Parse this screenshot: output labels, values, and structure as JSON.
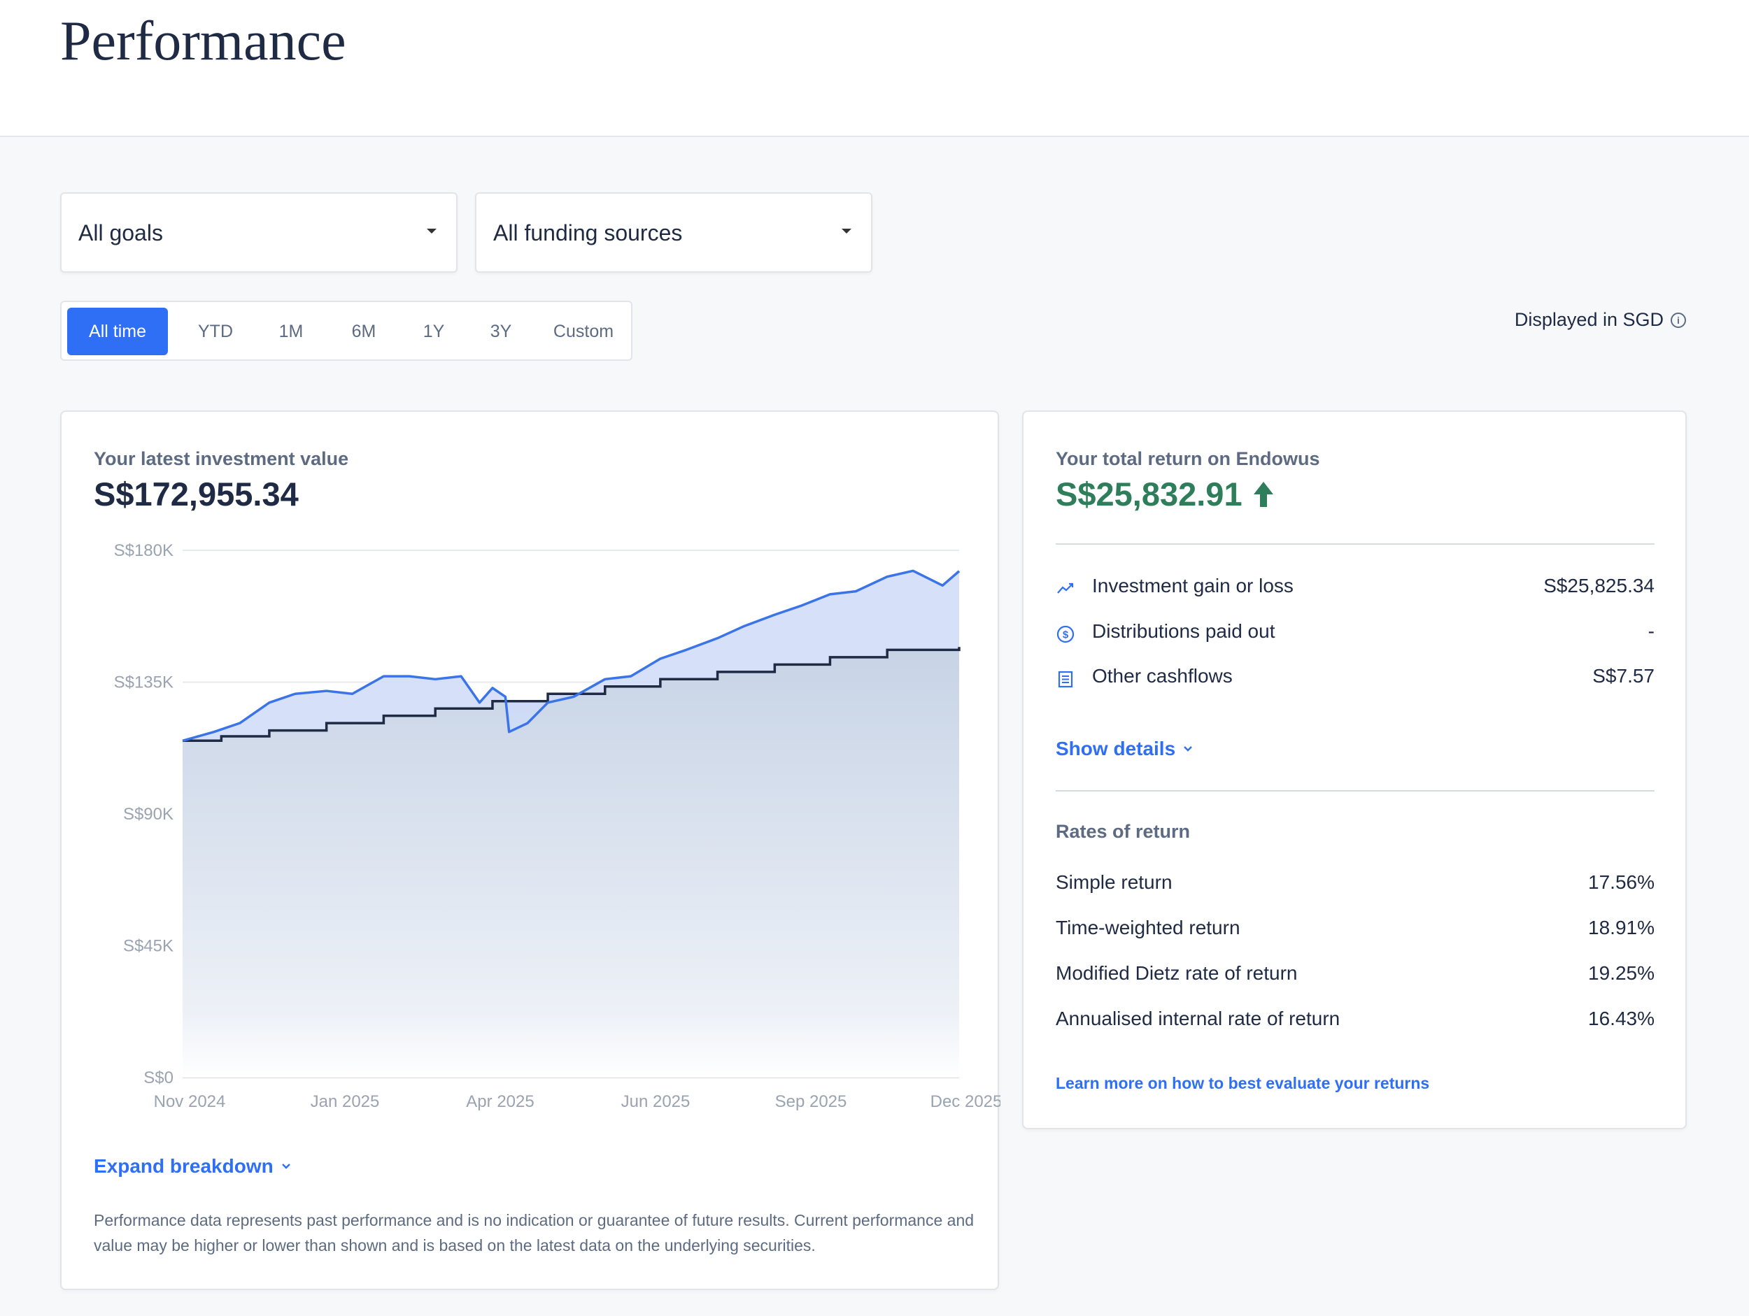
{
  "page": {
    "title": "Performance"
  },
  "filters": {
    "goals": {
      "selected": "All goals"
    },
    "funding": {
      "selected": "All funding sources"
    },
    "ranges": [
      "All time",
      "YTD",
      "1M",
      "6M",
      "1Y",
      "3Y",
      "Custom"
    ],
    "active_range": "All time",
    "currency_note": "Displayed in SGD"
  },
  "investment_card": {
    "subtitle": "Your latest investment value",
    "value": "S$172,955.34",
    "expand_label": "Expand breakdown",
    "disclaimer": "Performance data represents past performance and is no indication or guarantee of future results. Current performance and value may be higher or lower than shown and is based on the latest data on the underlying securities."
  },
  "return_card": {
    "subtitle": "Your total return on Endowus",
    "value": "S$25,832.91",
    "value_color": "#2e7d5b",
    "items": [
      {
        "icon": "trend-line-icon",
        "label": "Investment gain or loss",
        "value": "S$25,825.34"
      },
      {
        "icon": "dollar-coin-icon",
        "label": "Distributions paid out",
        "value": "-"
      },
      {
        "icon": "document-list-icon",
        "label": "Other cashflows",
        "value": "S$7.57"
      }
    ],
    "show_details_label": "Show details",
    "rates_title": "Rates of return",
    "rates": [
      {
        "label": "Simple return",
        "value": "17.56%"
      },
      {
        "label": "Time-weighted return",
        "value": "18.91%"
      },
      {
        "label": "Modified Dietz rate of return",
        "value": "19.25%"
      },
      {
        "label": "Annualised internal rate of return",
        "value": "16.43%"
      }
    ],
    "learn_more_label": "Learn more on how to best evaluate your returns"
  },
  "colors": {
    "accent": "#2f6ff5",
    "net_investment_line": "#1f2a44",
    "value_line": "#3b74e8"
  },
  "chart_data": {
    "type": "line",
    "title": "",
    "xlabel": "",
    "ylabel": "",
    "ylim": [
      0,
      180000
    ],
    "y_ticks": [
      "S$0",
      "S$45K",
      "S$90K",
      "S$135K",
      "S$180K"
    ],
    "x_ticks": [
      "Nov 2024",
      "Jan 2025",
      "Apr 2025",
      "Jun 2025",
      "Sep 2025",
      "Dec 2025"
    ],
    "grid": true,
    "series": [
      {
        "name": "",
        "color": "#3b74e8",
        "x": [
          "2024-10-15",
          "2024-11-01",
          "2024-11-15",
          "2024-12-01",
          "2024-12-15",
          "2025-01-01",
          "2025-01-15",
          "2025-02-01",
          "2025-02-15",
          "2025-03-01",
          "2025-03-15",
          "2025-03-25",
          "2025-04-01",
          "2025-04-08",
          "2025-04-10",
          "2025-04-20",
          "2025-05-01",
          "2025-05-15",
          "2025-06-01",
          "2025-06-15",
          "2025-07-01",
          "2025-07-15",
          "2025-08-01",
          "2025-08-15",
          "2025-09-01",
          "2025-09-15",
          "2025-10-01",
          "2025-10-15",
          "2025-11-01",
          "2025-11-15",
          "2025-12-01",
          "2025-12-10"
        ],
        "values": [
          115000,
          118000,
          121000,
          128000,
          131000,
          132000,
          131000,
          137000,
          137000,
          136000,
          137000,
          128000,
          133000,
          130000,
          118000,
          121000,
          128000,
          130000,
          136000,
          137000,
          143000,
          146000,
          150000,
          154000,
          158000,
          161000,
          165000,
          166000,
          171000,
          173000,
          168000,
          172900
        ]
      },
      {
        "name": "",
        "color": "#1f2a44",
        "x": [
          "2024-10-15",
          "2024-11-05",
          "2024-12-01",
          "2025-01-01",
          "2025-02-01",
          "2025-03-01",
          "2025-04-01",
          "2025-05-01",
          "2025-06-01",
          "2025-07-01",
          "2025-08-01",
          "2025-09-01",
          "2025-10-01",
          "2025-11-01",
          "2025-12-10"
        ],
        "values": [
          115000,
          116500,
          118500,
          121000,
          123500,
          126000,
          128500,
          131000,
          133500,
          136000,
          138500,
          141000,
          143500,
          146000,
          147000
        ]
      }
    ]
  }
}
